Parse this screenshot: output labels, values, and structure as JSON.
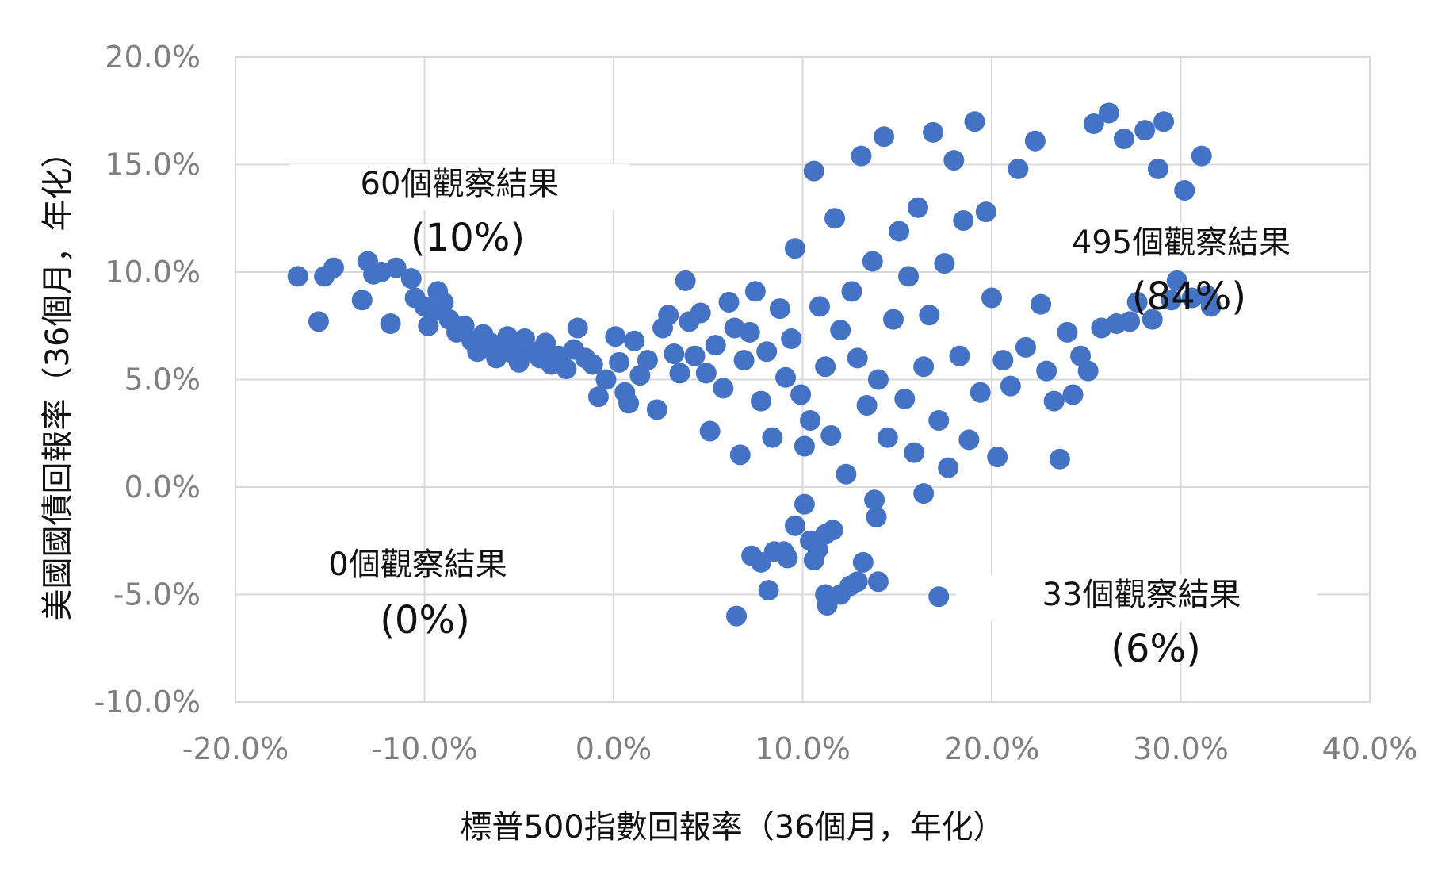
{
  "chart_data": {
    "type": "scatter",
    "xlabel": "標普500指數回報率（36個月，年化）",
    "ylabel": "美國國債回報率（36個月，年化）",
    "xlim": [
      -20,
      40
    ],
    "ylim": [
      -10,
      20
    ],
    "x_ticks": [
      -20,
      -10,
      0,
      10,
      20,
      30,
      40
    ],
    "y_ticks": [
      -10,
      -5,
      0,
      5,
      10,
      15,
      20
    ],
    "x_tick_labels": [
      "-20.0%",
      "-10.0%",
      "0.0%",
      "10.0%",
      "20.0%",
      "30.0%",
      "40.0%"
    ],
    "y_tick_labels": [
      "-10.0%",
      "-5.0%",
      "0.0%",
      "5.0%",
      "10.0%",
      "15.0%",
      "20.0%"
    ],
    "grid": true,
    "legend": "none",
    "point_color": "#4472c4",
    "annotations": [
      {
        "id": "upper-left",
        "count_label": "60個觀察結果",
        "pct_label": "(10%)"
      },
      {
        "id": "upper-right",
        "count_label": "495個觀察結果",
        "pct_label": "(84%)"
      },
      {
        "id": "lower-left",
        "count_label": "0個觀察結果",
        "pct_label": "(0%)"
      },
      {
        "id": "lower-right",
        "count_label": "33個觀察結果",
        "pct_label": "(6%)"
      }
    ],
    "points": [
      [
        -16.7,
        9.8
      ],
      [
        -15.6,
        7.7
      ],
      [
        -15.3,
        9.8
      ],
      [
        -14.8,
        10.2
      ],
      [
        -13.3,
        8.7
      ],
      [
        -13.0,
        10.5
      ],
      [
        -12.7,
        9.9
      ],
      [
        -12.3,
        10.0
      ],
      [
        -11.8,
        7.6
      ],
      [
        -11.5,
        10.2
      ],
      [
        -10.7,
        9.7
      ],
      [
        -10.5,
        8.8
      ],
      [
        -10.0,
        8.4
      ],
      [
        -9.8,
        7.5
      ],
      [
        -9.5,
        8.2
      ],
      [
        -9.3,
        9.1
      ],
      [
        -9.0,
        8.6
      ],
      [
        -8.7,
        7.8
      ],
      [
        -8.3,
        7.2
      ],
      [
        -7.9,
        7.5
      ],
      [
        -7.5,
        6.8
      ],
      [
        -7.2,
        6.3
      ],
      [
        -6.9,
        7.1
      ],
      [
        -6.5,
        6.7
      ],
      [
        -6.2,
        6.0
      ],
      [
        -5.9,
        6.6
      ],
      [
        -5.6,
        7.0
      ],
      [
        -5.3,
        6.2
      ],
      [
        -5.0,
        5.8
      ],
      [
        -4.7,
        6.9
      ],
      [
        -4.3,
        6.3
      ],
      [
        -3.9,
        6.0
      ],
      [
        -3.6,
        6.7
      ],
      [
        -3.3,
        5.7
      ],
      [
        -2.9,
        6.1
      ],
      [
        -2.5,
        5.5
      ],
      [
        -2.1,
        6.4
      ],
      [
        -1.9,
        7.4
      ],
      [
        -1.5,
        6.0
      ],
      [
        -1.1,
        5.7
      ],
      [
        -0.8,
        4.2
      ],
      [
        -0.4,
        5.0
      ],
      [
        0.1,
        7.0
      ],
      [
        0.3,
        5.8
      ],
      [
        0.6,
        4.4
      ],
      [
        0.8,
        3.9
      ],
      [
        1.1,
        6.8
      ],
      [
        1.4,
        5.2
      ],
      [
        1.8,
        5.9
      ],
      [
        2.3,
        3.6
      ],
      [
        2.6,
        7.4
      ],
      [
        2.9,
        8.0
      ],
      [
        3.2,
        6.2
      ],
      [
        3.5,
        5.3
      ],
      [
        3.8,
        9.6
      ],
      [
        4.0,
        7.7
      ],
      [
        4.3,
        6.1
      ],
      [
        4.6,
        8.1
      ],
      [
        4.9,
        5.3
      ],
      [
        5.1,
        2.6
      ],
      [
        5.4,
        6.6
      ],
      [
        5.8,
        4.6
      ],
      [
        6.1,
        8.6
      ],
      [
        6.4,
        7.4
      ],
      [
        6.7,
        1.5
      ],
      [
        6.9,
        5.9
      ],
      [
        7.2,
        7.2
      ],
      [
        7.5,
        9.1
      ],
      [
        7.8,
        4.0
      ],
      [
        8.1,
        6.3
      ],
      [
        8.4,
        2.3
      ],
      [
        8.8,
        8.3
      ],
      [
        9.1,
        5.1
      ],
      [
        9.4,
        6.9
      ],
      [
        9.6,
        11.1
      ],
      [
        9.9,
        4.3
      ],
      [
        10.1,
        1.9
      ],
      [
        10.4,
        3.1
      ],
      [
        10.6,
        14.7
      ],
      [
        10.9,
        8.4
      ],
      [
        11.2,
        5.6
      ],
      [
        11.5,
        2.4
      ],
      [
        11.7,
        12.5
      ],
      [
        12.0,
        7.3
      ],
      [
        12.3,
        0.6
      ],
      [
        12.6,
        9.1
      ],
      [
        12.9,
        6.0
      ],
      [
        13.1,
        15.4
      ],
      [
        13.4,
        3.8
      ],
      [
        13.7,
        10.5
      ],
      [
        14.0,
        5.0
      ],
      [
        14.3,
        16.3
      ],
      [
        14.5,
        2.3
      ],
      [
        14.8,
        7.8
      ],
      [
        15.1,
        11.9
      ],
      [
        15.4,
        4.1
      ],
      [
        15.6,
        9.8
      ],
      [
        15.9,
        1.6
      ],
      [
        16.1,
        13.0
      ],
      [
        16.4,
        5.6
      ],
      [
        16.7,
        8.0
      ],
      [
        16.9,
        16.5
      ],
      [
        17.2,
        3.1
      ],
      [
        17.5,
        10.4
      ],
      [
        17.7,
        0.9
      ],
      [
        18.0,
        15.2
      ],
      [
        18.3,
        6.1
      ],
      [
        18.5,
        12.4
      ],
      [
        18.8,
        2.2
      ],
      [
        19.1,
        17.0
      ],
      [
        19.4,
        4.4
      ],
      [
        19.7,
        12.8
      ],
      [
        20.0,
        8.8
      ],
      [
        20.3,
        1.4
      ],
      [
        20.6,
        5.9
      ],
      [
        21.0,
        4.7
      ],
      [
        21.4,
        14.8
      ],
      [
        21.8,
        6.5
      ],
      [
        22.3,
        16.1
      ],
      [
        22.6,
        8.5
      ],
      [
        22.9,
        5.4
      ],
      [
        23.3,
        4.0
      ],
      [
        23.6,
        1.3
      ],
      [
        24.0,
        7.2
      ],
      [
        24.3,
        4.3
      ],
      [
        24.7,
        6.1
      ],
      [
        25.1,
        5.4
      ],
      [
        25.4,
        16.9
      ],
      [
        25.8,
        7.4
      ],
      [
        26.2,
        17.4
      ],
      [
        26.6,
        7.6
      ],
      [
        27.0,
        16.2
      ],
      [
        27.3,
        7.7
      ],
      [
        27.7,
        8.6
      ],
      [
        28.1,
        16.6
      ],
      [
        28.5,
        7.8
      ],
      [
        28.8,
        14.8
      ],
      [
        29.1,
        17.0
      ],
      [
        29.5,
        8.7
      ],
      [
        29.8,
        9.6
      ],
      [
        30.2,
        13.8
      ],
      [
        30.6,
        8.8
      ],
      [
        31.1,
        15.4
      ],
      [
        31.4,
        8.9
      ],
      [
        31.6,
        8.4
      ],
      [
        8.5,
        -3.0
      ],
      [
        7.8,
        -3.5
      ],
      [
        7.3,
        -3.2
      ],
      [
        9.2,
        -3.3
      ],
      [
        9.6,
        -1.8
      ],
      [
        10.1,
        -0.8
      ],
      [
        10.4,
        -2.5
      ],
      [
        10.8,
        -2.9
      ],
      [
        11.2,
        -2.2
      ],
      [
        11.6,
        -2.0
      ],
      [
        8.2,
        -4.8
      ],
      [
        6.5,
        -6.0
      ],
      [
        11.2,
        -5.0
      ],
      [
        11.3,
        -5.5
      ],
      [
        12.5,
        -4.6
      ],
      [
        12.9,
        -4.4
      ],
      [
        13.2,
        -3.5
      ],
      [
        13.8,
        -0.6
      ],
      [
        13.9,
        -1.4
      ],
      [
        14.0,
        -4.4
      ],
      [
        16.4,
        -0.3
      ],
      [
        17.2,
        -5.1
      ],
      [
        12.0,
        -5.0
      ],
      [
        10.6,
        -3.4
      ],
      [
        9.0,
        -3.0
      ]
    ]
  }
}
